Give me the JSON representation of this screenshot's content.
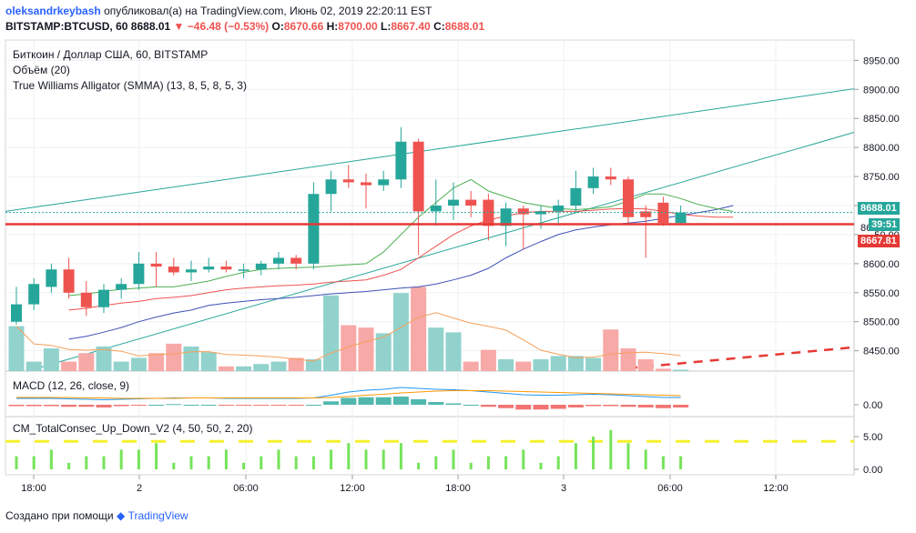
{
  "header": {
    "author": "oleksandrkeybash",
    "published_text": "опубликовал(а) на TradingView.com, Июнь 02, 2019 22:20:11 EST",
    "symbol": "BITSTAMP:BTCUSD, 60",
    "last": "8688.01",
    "change": "−46.48 (−0.53%)",
    "o_label": "O:",
    "o_value": "8670.66",
    "h_label": "H:",
    "h_value": "8700.00",
    "l_label": "L:",
    "l_value": "8667.40",
    "c_label": "C:",
    "c_value": "8688.01"
  },
  "legends": {
    "title": "Биткоин / Доллар США, 60, BITSTAMP",
    "volume": "Объём (20)",
    "alligator": "True Williams Alligator (SMMA) (13, 8, 5, 8, 5, 3)",
    "macd": "MACD (12, 26, close, 9)",
    "consec": "CM_TotalConsec_Up_Down_V2 (4, 50, 50, 2, 20)"
  },
  "price_tags": {
    "last": "8688.01",
    "countdown": "39:51",
    "line": "8667.81",
    "hidden_partial": "86"
  },
  "footer": {
    "prefix": "Создано при помощи",
    "brand": "TradingView"
  },
  "colors": {
    "up": "#26a69a",
    "down": "#ef5350",
    "up_vol": "#92d2cc",
    "down_vol": "#f7a9a7",
    "trend": "#26a69a",
    "hline": "#e53935",
    "blue": "#3f51b5",
    "orange": "#f6a05a",
    "yellow": "#f5f02d"
  },
  "chart_data": [
    {
      "type": "candlestick",
      "title": "Биткоин / Доллар США, 60, BITSTAMP",
      "x_tick_labels": [
        "18:00",
        "2",
        "06:00",
        "12:00",
        "18:00",
        "3",
        "06:00",
        "12:00"
      ],
      "y_tick_labels": [
        "8950.00",
        "8900.00",
        "8850.00",
        "8800.00",
        "8750.00",
        "8700.00",
        "8650.00",
        "8600.00",
        "8550.00",
        "8500.00",
        "8450.00"
      ],
      "ylim": [
        8415,
        8985
      ],
      "horizontal_line": 8667.81,
      "candles": [
        [
          8500,
          8560,
          8495,
          8530
        ],
        [
          8530,
          8575,
          8520,
          8565
        ],
        [
          8560,
          8600,
          8550,
          8590
        ],
        [
          8590,
          8610,
          8540,
          8550
        ],
        [
          8550,
          8570,
          8510,
          8525
        ],
        [
          8525,
          8565,
          8515,
          8555
        ],
        [
          8555,
          8575,
          8540,
          8565
        ],
        [
          8565,
          8620,
          8555,
          8600
        ],
        [
          8600,
          8620,
          8560,
          8595
        ],
        [
          8595,
          8610,
          8580,
          8585
        ],
        [
          8585,
          8605,
          8570,
          8590
        ],
        [
          8590,
          8610,
          8585,
          8595
        ],
        [
          8595,
          8605,
          8585,
          8590
        ],
        [
          8590,
          8600,
          8575,
          8590
        ],
        [
          8590,
          8605,
          8580,
          8600
        ],
        [
          8600,
          8620,
          8590,
          8610
        ],
        [
          8610,
          8615,
          8590,
          8600
        ],
        [
          8600,
          8740,
          8590,
          8720
        ],
        [
          8720,
          8760,
          8690,
          8745
        ],
        [
          8745,
          8770,
          8730,
          8740
        ],
        [
          8740,
          8755,
          8695,
          8735
        ],
        [
          8735,
          8760,
          8725,
          8745
        ],
        [
          8745,
          8835,
          8730,
          8810
        ],
        [
          8810,
          8815,
          8615,
          8690
        ],
        [
          8690,
          8745,
          8665,
          8700
        ],
        [
          8700,
          8740,
          8675,
          8710
        ],
        [
          8710,
          8725,
          8680,
          8700
        ],
        [
          8710,
          8720,
          8640,
          8665
        ],
        [
          8665,
          8705,
          8630,
          8695
        ],
        [
          8695,
          8700,
          8625,
          8685
        ],
        [
          8685,
          8700,
          8660,
          8690
        ],
        [
          8690,
          8710,
          8665,
          8700
        ],
        [
          8700,
          8760,
          8690,
          8730
        ],
        [
          8730,
          8765,
          8720,
          8750
        ],
        [
          8750,
          8765,
          8735,
          8745
        ],
        [
          8745,
          8750,
          8670,
          8680
        ],
        [
          8690,
          8700,
          8610,
          8680
        ],
        [
          8705,
          8715,
          8665,
          8670
        ],
        [
          8670,
          8700,
          8667,
          8688
        ]
      ],
      "volume": [
        95,
        20,
        48,
        20,
        38,
        52,
        20,
        28,
        38,
        58,
        52,
        40,
        10,
        10,
        15,
        20,
        28,
        25,
        160,
        97,
        92,
        80,
        165,
        178,
        92,
        82,
        20,
        45,
        25,
        20,
        25,
        32,
        32,
        28,
        88,
        48,
        25,
        5,
        3
      ],
      "alligator": {
        "jaw": [
          8470,
          8475,
          8482,
          8490,
          8500,
          8508,
          8515,
          8520,
          8528,
          8532,
          8535,
          8538,
          8540,
          8542,
          8545,
          8548,
          8550,
          8552,
          8555,
          8558,
          8560,
          8565,
          8572,
          8580,
          8592,
          8610,
          8625,
          8638,
          8650,
          8658,
          8663,
          8667,
          8670,
          8673,
          8678,
          8683,
          8688,
          8693,
          8700
        ],
        "teeth": [
          8520,
          8523,
          8528,
          8532,
          8535,
          8540,
          8542,
          8545,
          8550,
          8555,
          8558,
          8560,
          8562,
          8563,
          8565,
          8568,
          8570,
          8572,
          8580,
          8590,
          8610,
          8630,
          8650,
          8665,
          8675,
          8682,
          8688,
          8690,
          8690,
          8690,
          8692,
          8694,
          8695,
          8694,
          8690,
          8685,
          8682,
          8680,
          8680
        ],
        "lips": [
          8545,
          8548,
          8552,
          8556,
          8558,
          8560,
          8560,
          8565,
          8570,
          8578,
          8585,
          8590,
          8592,
          8593,
          8594,
          8596,
          8598,
          8600,
          8620,
          8650,
          8680,
          8705,
          8730,
          8745,
          8725,
          8715,
          8705,
          8700,
          8695,
          8693,
          8695,
          8698,
          8708,
          8720,
          8720,
          8712,
          8702,
          8695,
          8690
        ]
      }
    },
    {
      "type": "line",
      "title": "MACD (12, 26, close, 9)",
      "y_tick_labels": [
        "0.00"
      ],
      "series": [
        {
          "name": "macd",
          "values": [
            -12,
            -12,
            -12,
            -13,
            -14,
            -15,
            -14,
            -13,
            -12,
            -11,
            -11,
            -11,
            -12,
            -12,
            -12,
            -12,
            -12,
            -11,
            -5,
            2,
            6,
            8,
            12,
            10,
            8,
            7,
            5,
            2,
            -1,
            -4,
            -5,
            -5,
            -4,
            -3,
            -4,
            -6,
            -8,
            -10,
            -10
          ]
        },
        {
          "name": "signal",
          "values": [
            -10,
            -10,
            -10,
            -10,
            -11,
            -11,
            -12,
            -12,
            -12,
            -12,
            -11,
            -11,
            -11,
            -11,
            -11,
            -11,
            -11,
            -11,
            -10,
            -8,
            -5,
            -3,
            0,
            2,
            4,
            5,
            5,
            5,
            4,
            3,
            2,
            1,
            0,
            -1,
            -2,
            -3,
            -4,
            -5,
            -6
          ]
        }
      ]
    },
    {
      "type": "bar",
      "title": "CM_TotalConsec_Up_Down_V2 (4, 50, 50, 2, 20)",
      "y_tick_labels": [
        "5.00",
        "0.00"
      ],
      "threshold": 4,
      "values": [
        2,
        2,
        3,
        1,
        2,
        2,
        3,
        3,
        4,
        1,
        2,
        2,
        3,
        1,
        2,
        3,
        2,
        2,
        3,
        4,
        3,
        3,
        4,
        1,
        2,
        3,
        1,
        2,
        2,
        3,
        1,
        2,
        4,
        5,
        6,
        4,
        3,
        2,
        2
      ]
    }
  ]
}
